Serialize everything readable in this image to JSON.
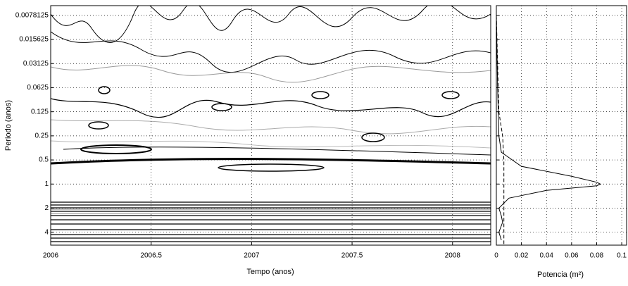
{
  "chart_data": [
    {
      "type": "contour",
      "xlabel": "Tempo (anos)",
      "ylabel": "Periodo (anos)",
      "xlim": [
        2006,
        2008.19
      ],
      "xticks": [
        2006,
        2006.5,
        2007,
        2007.5,
        2008
      ],
      "ylim": [
        0.0059,
        5.8
      ],
      "yticks": [
        0.0078125,
        0.015625,
        0.03125,
        0.0625,
        0.125,
        0.25,
        0.5,
        1,
        2,
        4
      ],
      "log_scale_y": true,
      "y_inverted": true,
      "grid": true
    },
    {
      "type": "line",
      "xlabel": "Potencia (m²)",
      "xlim": [
        0,
        0.105
      ],
      "xticks": [
        0,
        0.02,
        0.04,
        0.06,
        0.08,
        0.1
      ],
      "ylim": [
        0.0059,
        5.8
      ],
      "yticks": [
        0.0078125,
        0.015625,
        0.03125,
        0.0625,
        0.125,
        0.25,
        0.5,
        1,
        2,
        4
      ],
      "log_scale_y": true,
      "y_inverted": true,
      "grid": true,
      "series": [
        {
          "color": "#000000",
          "dash": false,
          "y": [
            0.0078125,
            0.0625,
            0.25,
            0.4,
            0.6,
            0.8,
            0.95,
            1,
            1.05,
            1.2,
            1.5,
            2,
            2.5,
            3,
            4,
            5
          ],
          "values": [
            0,
            0.001,
            0.002,
            0.004,
            0.02,
            0.06,
            0.08,
            0.083,
            0.08,
            0.04,
            0.01,
            0.002,
            0.004,
            0.005,
            0.002,
            0.004
          ]
        },
        {
          "color": "#000000",
          "dash": true,
          "y": [
            0.0078125,
            0.125,
            0.25,
            0.5,
            1,
            2,
            4,
            5.8
          ],
          "values": [
            0,
            0.002,
            0.005,
            0.006,
            0.006,
            0.006,
            0.006,
            0.006
          ]
        }
      ]
    }
  ]
}
